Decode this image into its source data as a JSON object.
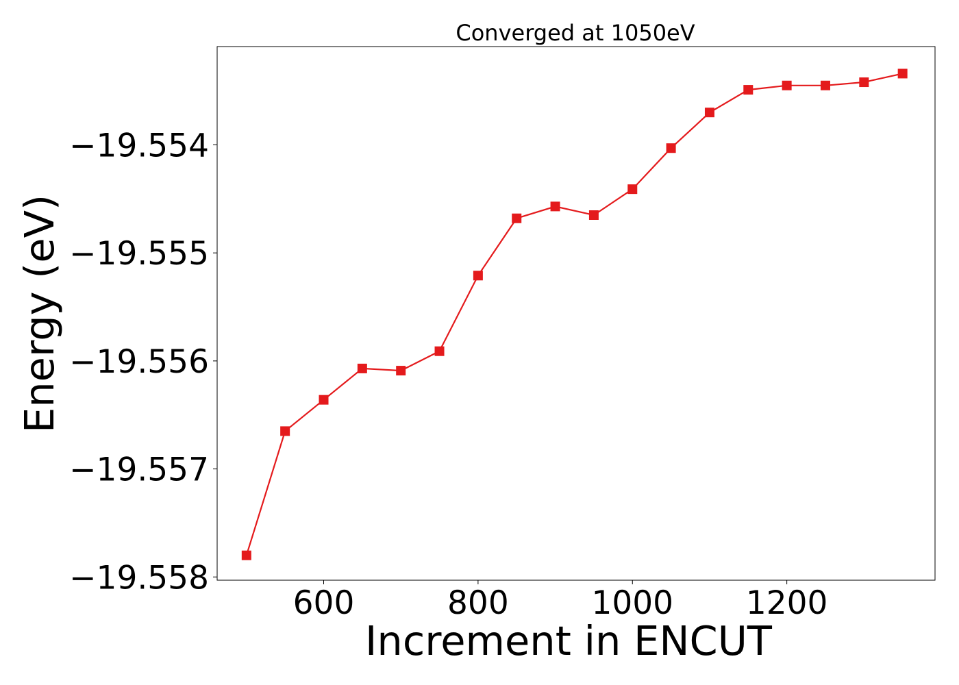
{
  "chart_data": {
    "type": "line",
    "title": "Converged at 1050eV",
    "xlabel": "Increment in ENCUT",
    "ylabel": "Energy (eV)",
    "xlim": [
      462,
      1392
    ],
    "ylim": [
      -19.55803,
      -19.55309
    ],
    "xticks": [
      600,
      800,
      1000,
      1200
    ],
    "yticks": [
      -19.554,
      -19.555,
      -19.556,
      -19.557,
      -19.558
    ],
    "xtick_labels": [
      "600",
      "800",
      "1000",
      "1200"
    ],
    "ytick_labels": [
      "−19.554",
      "−19.555",
      "−19.556",
      "−19.557",
      "−19.558"
    ],
    "grid": false,
    "legend": false,
    "series": [
      {
        "color": "#e41a1c",
        "marker": "square",
        "x": [
          500,
          550,
          600,
          650,
          700,
          750,
          800,
          850,
          900,
          950,
          1000,
          1050,
          1100,
          1150,
          1200,
          1250,
          1300,
          1350
        ],
        "y": [
          -19.5578,
          -19.55665,
          -19.55636,
          -19.55607,
          -19.55609,
          -19.55591,
          -19.55521,
          -19.55468,
          -19.55457,
          -19.55465,
          -19.55441,
          -19.55403,
          -19.5537,
          -19.55349,
          -19.55345,
          -19.55345,
          -19.55342,
          -19.55334
        ]
      }
    ]
  }
}
